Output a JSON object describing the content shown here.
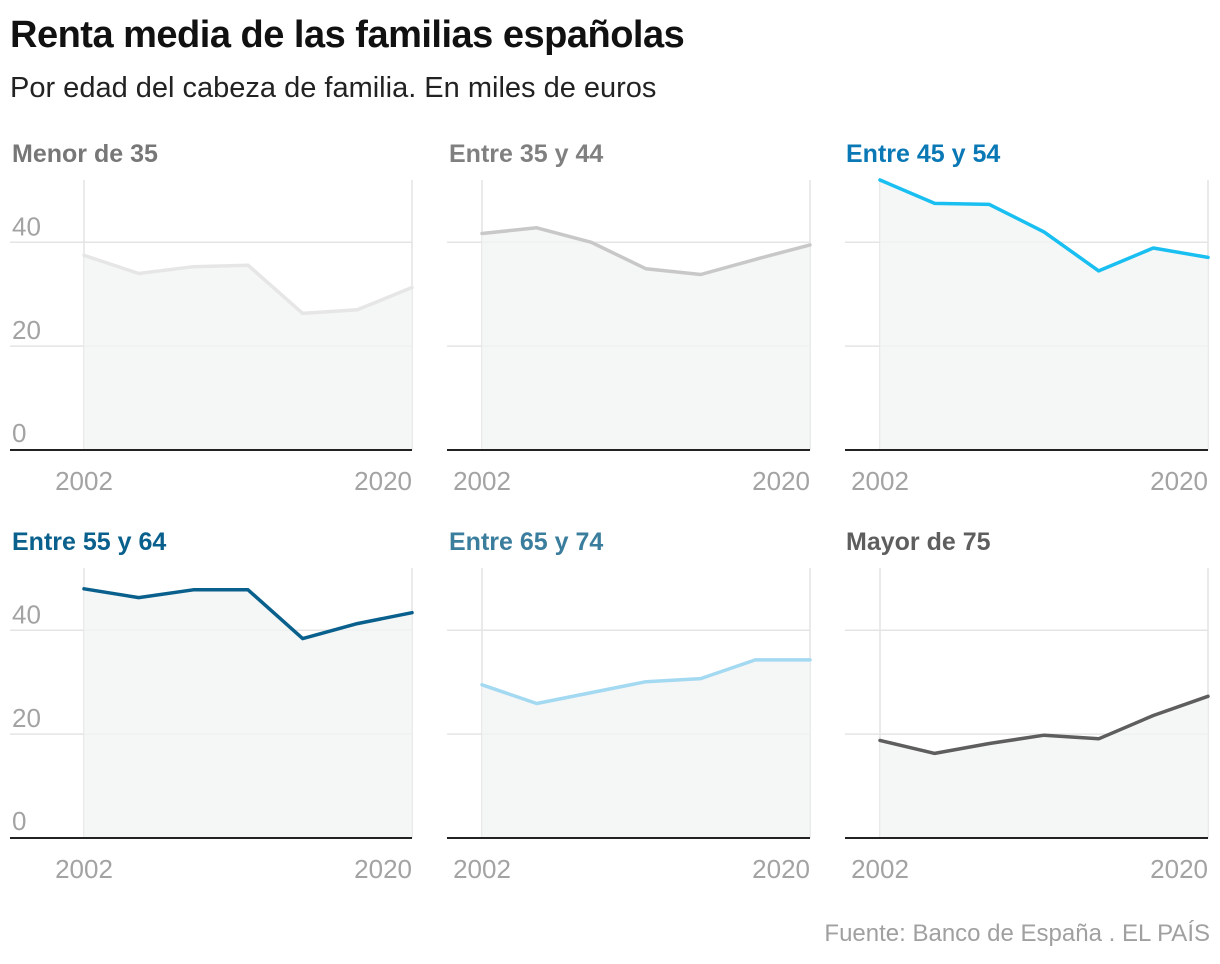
{
  "title": "Renta media de las familias españolas",
  "subtitle": "Por edad del cabeza de familia. En miles de euros",
  "source": "Fuente: Banco de España . EL PAÍS",
  "chart_data": {
    "type": "line",
    "layout": "small-multiples",
    "x": [
      2002,
      2005,
      2008,
      2011,
      2014,
      2017,
      2020
    ],
    "x_ticks": [
      "2002",
      "2020"
    ],
    "y_ticks": [
      "0",
      "20",
      "40"
    ],
    "ylim": [
      0,
      52
    ],
    "grid": true,
    "fill_under": true,
    "panels": [
      {
        "name": "Menor de 35",
        "color": "#e6e6e6",
        "title_color": "#777777",
        "values": [
          37.5,
          34,
          35.3,
          35.6,
          26.3,
          27,
          31.3
        ]
      },
      {
        "name": "Entre 35 y 44",
        "color": "#c8c8c8",
        "title_color": "#808080",
        "values": [
          41.7,
          42.8,
          40,
          34.9,
          33.8,
          36.7,
          39.5
        ]
      },
      {
        "name": "Entre 45 y 54",
        "color": "#19bff0",
        "title_color": "#0a78b5",
        "values": [
          52,
          47.5,
          47.3,
          42,
          34.5,
          38.9,
          37.1
        ]
      },
      {
        "name": "Entre 55 y 64",
        "color": "#0a608d",
        "title_color": "#0a608d",
        "values": [
          48,
          46.3,
          47.8,
          47.8,
          38.4,
          41.3,
          43.4
        ]
      },
      {
        "name": "Entre 65 y 74",
        "color": "#a4d9f2",
        "title_color": "#3b7d9c",
        "values": [
          29.5,
          25.9,
          28,
          30.1,
          30.7,
          34.3,
          34.3
        ]
      },
      {
        "name": "Mayor de 75",
        "color": "#5e5e5e",
        "title_color": "#5e5e5e",
        "values": [
          18.8,
          16.3,
          18.2,
          19.8,
          19.1,
          23.6,
          27.3
        ]
      }
    ]
  }
}
